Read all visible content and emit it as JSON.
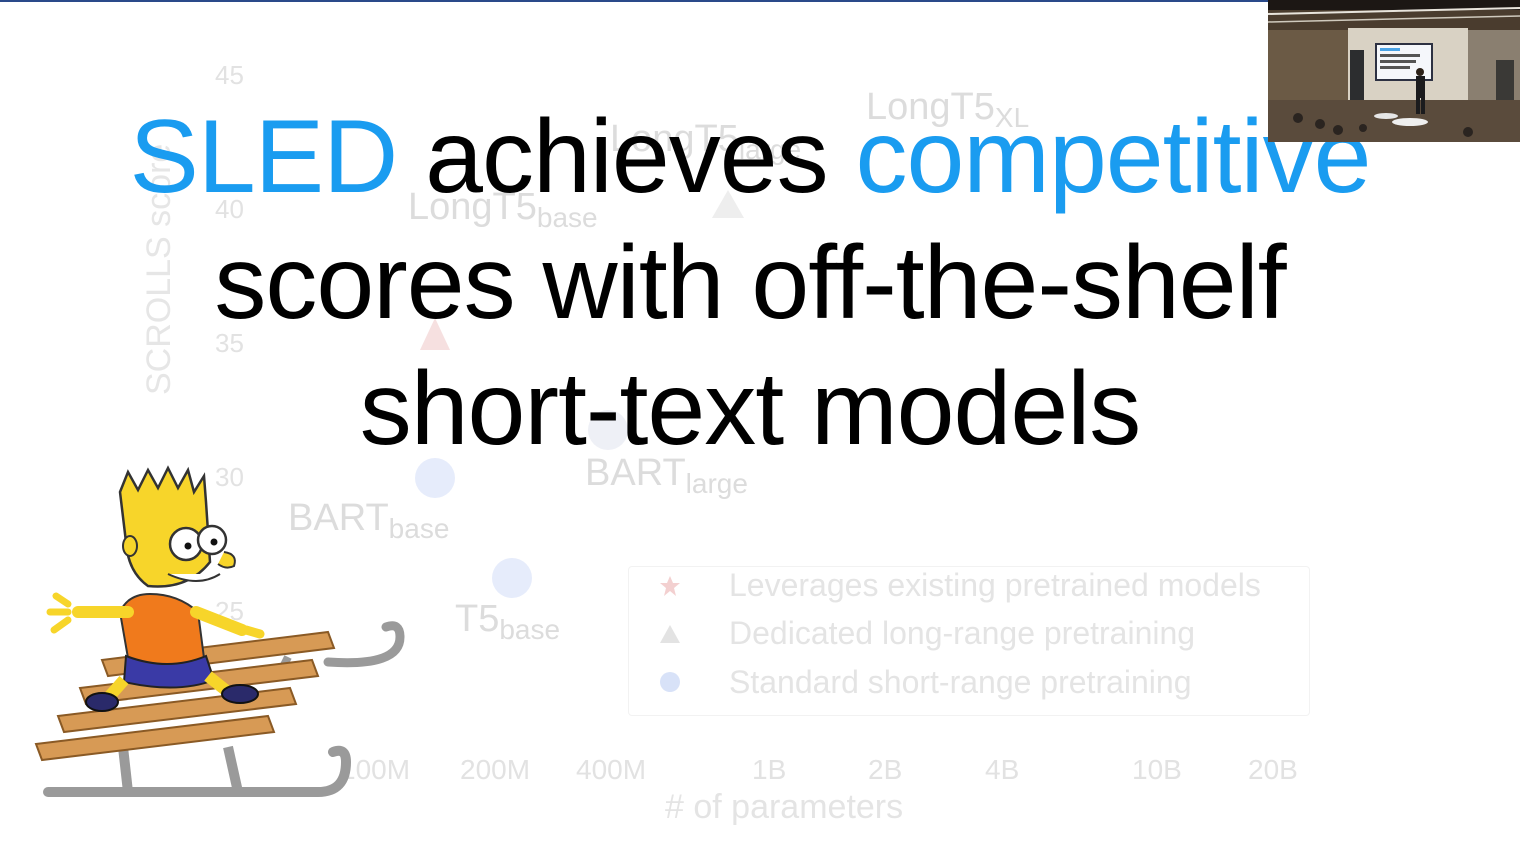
{
  "title": {
    "line1_word1": "SLED",
    "line1_word2": " achieves ",
    "line1_word3": "competitive",
    "line2": "scores with off-the-shelf",
    "line3": "short-text models"
  },
  "background_chart": {
    "y_ticks": [
      "45",
      "40",
      "35",
      "30",
      "25"
    ],
    "y_label": "SCROLLS score",
    "x_ticks": [
      "100M",
      "200M",
      "400M",
      "1B",
      "2B",
      "4B",
      "10B",
      "20B"
    ],
    "x_label": "# of parameters",
    "points": [
      {
        "name": "LongT5",
        "sub": "XL"
      },
      {
        "name": "LongT5",
        "sub": "large"
      },
      {
        "name": "LongT5",
        "sub": "base"
      },
      {
        "name": "BART",
        "sub": "large"
      },
      {
        "name": "BART",
        "sub": "base"
      },
      {
        "name": "T5",
        "sub": "base"
      }
    ],
    "legend": [
      {
        "label": "Leverages existing pretrained models",
        "color": "#f3c8c8",
        "shape": "star"
      },
      {
        "label": "Dedicated long-range pretraining",
        "color": "#e3e3e3",
        "shape": "triangle"
      },
      {
        "label": "Standard short-range pretraining",
        "color": "#c9d6f5",
        "shape": "circle"
      }
    ]
  },
  "colors": {
    "highlight": "#1a9cf0",
    "text": "#000000"
  }
}
